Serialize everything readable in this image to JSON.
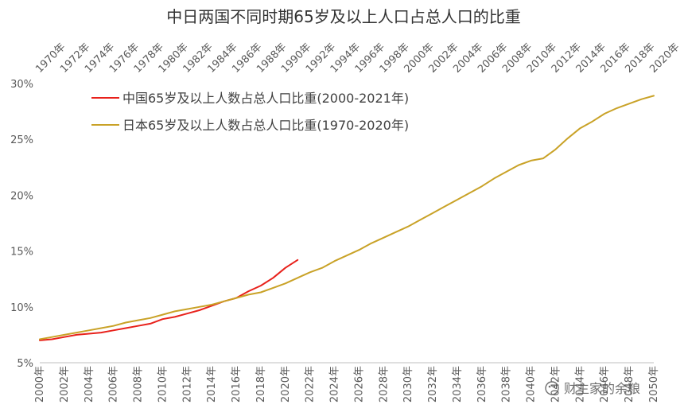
{
  "chart_data": {
    "type": "line",
    "title": "中日两国不同时期65岁及以上人口占总人口的比重",
    "xlabel": "",
    "ylabel": "",
    "ylim": [
      5,
      30
    ],
    "yticks": [
      "5%",
      "10%",
      "15%",
      "20%",
      "25%",
      "30%"
    ],
    "ytick_values": [
      5,
      10,
      15,
      20,
      25,
      30
    ],
    "grid": false,
    "legend_position": "top-left",
    "x_bottom_labels": [
      "2000年",
      "2002年",
      "2004年",
      "2006年",
      "2008年",
      "2010年",
      "2012年",
      "2014年",
      "2016年",
      "2018年",
      "2020年",
      "2022年",
      "2024年",
      "2026年",
      "2028年",
      "2030年",
      "2032年",
      "2034年",
      "2036年",
      "2038年",
      "2040年",
      "2042年",
      "2044年",
      "2046年",
      "2048年",
      "2050年"
    ],
    "x_top_labels": [
      "1970年",
      "1972年",
      "1974年",
      "1976年",
      "1978年",
      "1980年",
      "1982年",
      "1984年",
      "1986年",
      "1988年",
      "1990年",
      "1992年",
      "1994年",
      "1996年",
      "1998年",
      "2000年",
      "2002年",
      "2004年",
      "2006年",
      "2008年",
      "2010年",
      "2012年",
      "2014年",
      "2016年",
      "2018年",
      "2020年"
    ],
    "series": [
      {
        "name": "中国65岁及以上人数占总人口比重(2000-2021年)",
        "color": "#e8211b",
        "axis": "bottom",
        "x": [
          2000,
          2001,
          2002,
          2003,
          2004,
          2005,
          2006,
          2007,
          2008,
          2009,
          2010,
          2011,
          2012,
          2013,
          2014,
          2015,
          2016,
          2017,
          2018,
          2019,
          2020,
          2021
        ],
        "values": [
          7.0,
          7.1,
          7.3,
          7.5,
          7.6,
          7.7,
          7.9,
          8.1,
          8.3,
          8.5,
          8.9,
          9.1,
          9.4,
          9.7,
          10.1,
          10.5,
          10.8,
          11.4,
          11.9,
          12.6,
          13.5,
          14.2
        ]
      },
      {
        "name": "日本65岁及以上人数占总人口比重(1970-2020年)",
        "color": "#c9a227",
        "axis": "top",
        "x": [
          1970,
          1971,
          1972,
          1973,
          1974,
          1975,
          1976,
          1977,
          1978,
          1979,
          1980,
          1981,
          1982,
          1983,
          1984,
          1985,
          1986,
          1987,
          1988,
          1989,
          1990,
          1991,
          1992,
          1993,
          1994,
          1995,
          1996,
          1997,
          1998,
          1999,
          2000,
          2001,
          2002,
          2003,
          2004,
          2005,
          2006,
          2007,
          2008,
          2009,
          2010,
          2011,
          2012,
          2013,
          2014,
          2015,
          2016,
          2017,
          2018,
          2019,
          2020
        ],
        "values": [
          7.1,
          7.3,
          7.5,
          7.7,
          7.9,
          8.1,
          8.3,
          8.6,
          8.8,
          9.0,
          9.3,
          9.6,
          9.8,
          10.0,
          10.2,
          10.5,
          10.8,
          11.1,
          11.3,
          11.7,
          12.1,
          12.6,
          13.1,
          13.5,
          14.1,
          14.6,
          15.1,
          15.7,
          16.2,
          16.7,
          17.2,
          17.8,
          18.4,
          19.0,
          19.6,
          20.2,
          20.8,
          21.5,
          22.1,
          22.7,
          23.1,
          23.3,
          24.1,
          25.1,
          26.0,
          26.6,
          27.3,
          27.8,
          28.2,
          28.6,
          28.9
        ]
      }
    ]
  },
  "watermark": "财主家的余粮"
}
